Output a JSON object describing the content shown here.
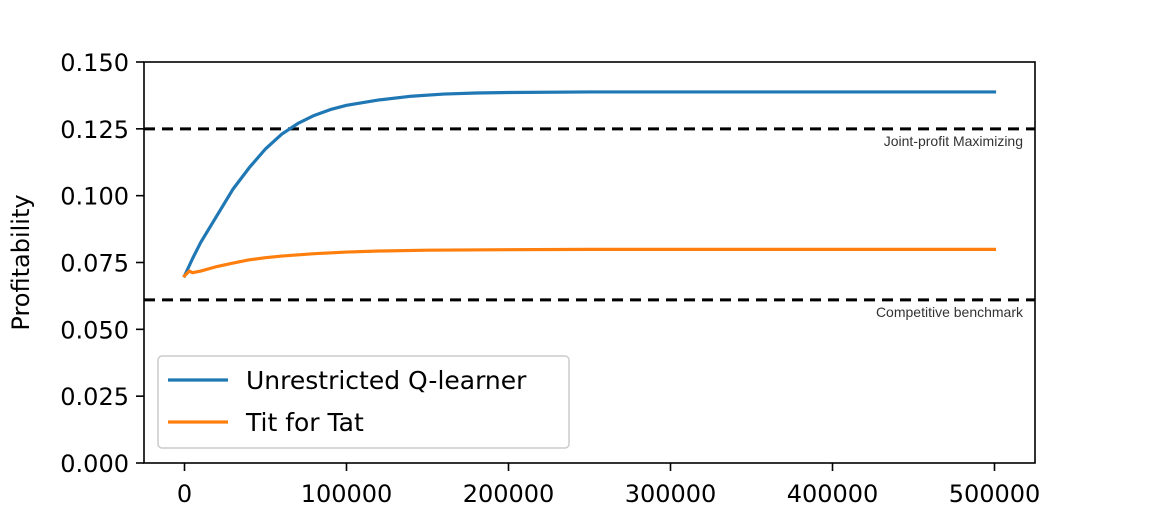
{
  "chart_data": {
    "type": "line",
    "title": "",
    "xlabel": "",
    "ylabel": "Profitability",
    "xlim": [
      -25000,
      525000
    ],
    "ylim": [
      0,
      0.15
    ],
    "xticks": [
      0,
      100000,
      200000,
      300000,
      400000,
      500000
    ],
    "xtick_labels": [
      "0",
      "100000",
      "200000",
      "300000",
      "400000",
      "500000"
    ],
    "yticks": [
      0,
      0.025,
      0.05,
      0.075,
      0.1,
      0.125,
      0.15
    ],
    "ytick_labels": [
      "0.000",
      "0.025",
      "0.050",
      "0.075",
      "0.100",
      "0.125",
      "0.150"
    ],
    "grid": false,
    "legend_position": "lower-left",
    "series": [
      {
        "name": "Unrestricted Q-learner",
        "color": "#1f77b4",
        "x": [
          0,
          5000,
          10000,
          20000,
          30000,
          40000,
          50000,
          60000,
          70000,
          80000,
          90000,
          100000,
          120000,
          140000,
          160000,
          180000,
          200000,
          250000,
          300000,
          400000,
          500000
        ],
        "y": [
          0.07,
          0.0765,
          0.0825,
          0.0925,
          0.1025,
          0.1105,
          0.1175,
          0.123,
          0.127,
          0.13,
          0.1322,
          0.1338,
          0.1358,
          0.1372,
          0.138,
          0.1384,
          0.1386,
          0.1388,
          0.1388,
          0.1388,
          0.1388
        ]
      },
      {
        "name": "Tit for Tat",
        "color": "#ff7f0e",
        "x": [
          0,
          3000,
          5000,
          10000,
          20000,
          30000,
          40000,
          50000,
          60000,
          80000,
          100000,
          120000,
          150000,
          200000,
          250000,
          300000,
          400000,
          500000
        ],
        "y": [
          0.07,
          0.0718,
          0.0712,
          0.0718,
          0.0735,
          0.0748,
          0.076,
          0.0768,
          0.0774,
          0.0783,
          0.0789,
          0.0793,
          0.0796,
          0.0798,
          0.0799,
          0.0799,
          0.0799,
          0.0799
        ]
      }
    ],
    "reference_lines": [
      {
        "y": 0.125,
        "label": "Joint-profit Maximizing",
        "style": "dashed",
        "color": "#000000"
      },
      {
        "y": 0.061,
        "label": "Competitive benchmark",
        "style": "dashed",
        "color": "#000000"
      }
    ]
  }
}
